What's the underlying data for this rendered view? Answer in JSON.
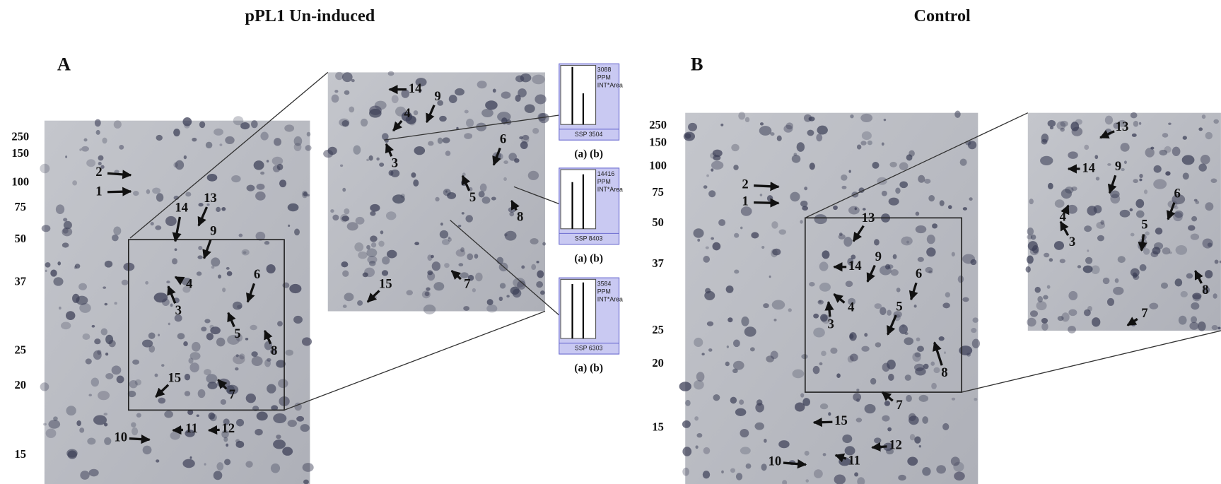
{
  "titles": [
    "pPL1 Un-induced",
    "Control"
  ],
  "panels": [
    {
      "label": "A",
      "mw_markers": [
        "250",
        "150",
        "100",
        "75",
        "50",
        "37",
        "25",
        "20",
        "15"
      ],
      "gel_spots": [
        "2",
        "1",
        "14",
        "13",
        "9",
        "4",
        "3",
        "6",
        "5",
        "8",
        "15",
        "7",
        "10",
        "11",
        "12"
      ],
      "zoom_spots": [
        "14",
        "4",
        "9",
        "3",
        "6",
        "5",
        "8",
        "15",
        "7"
      ]
    },
    {
      "label": "B",
      "mw_markers": [
        "250",
        "150",
        "100",
        "75",
        "50",
        "37",
        "25",
        "20",
        "15"
      ],
      "gel_spots": [
        "2",
        "1",
        "13",
        "14",
        "9",
        "4",
        "3",
        "6",
        "5",
        "8",
        "7",
        "15",
        "12",
        "10",
        "11"
      ],
      "zoom_spots": [
        "13",
        "14",
        "9",
        "4",
        "3",
        "6",
        "5",
        "8",
        "7"
      ]
    }
  ],
  "insets": [
    {
      "value": "3088",
      "unit": "PPM",
      "metric": "INT*Area",
      "ssp": "SSP 3504",
      "lanes": "(a)  (b)"
    },
    {
      "value": "14416",
      "unit": "PPM",
      "metric": "INT*Area",
      "ssp": "SSP 8403",
      "lanes": "(a)  (b)"
    },
    {
      "value": "3584",
      "unit": "PPM",
      "metric": "INT*Area",
      "ssp": "SSP 6303",
      "lanes": "(a)  (b)"
    }
  ]
}
